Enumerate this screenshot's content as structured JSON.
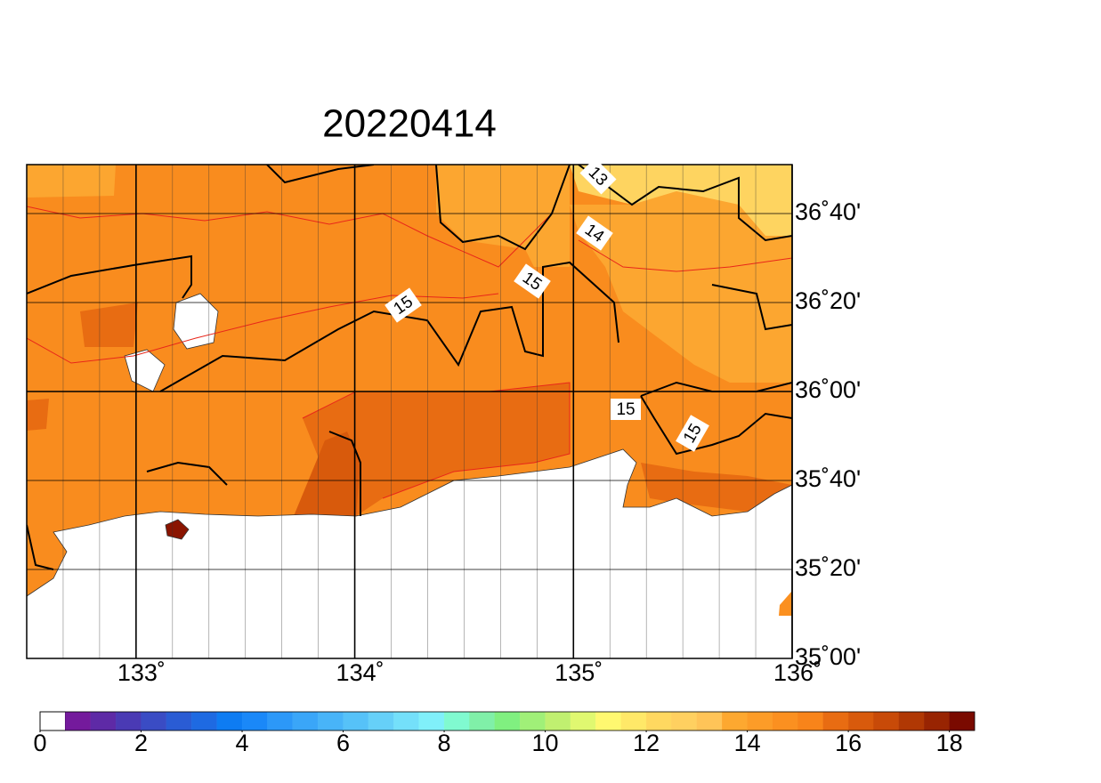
{
  "map": {
    "title": "20220414",
    "lon_lim": [
      132.5,
      136
    ],
    "lat_lim": [
      35,
      36.85
    ],
    "lon_ticks": [
      {
        "value": 133,
        "label": "133˚"
      },
      {
        "value": 134,
        "label": "134˚"
      },
      {
        "value": 135,
        "label": "135˚"
      },
      {
        "value": 136,
        "label": "136˚"
      }
    ],
    "lat_ticks": [
      {
        "value": 35,
        "label": "35˚00'"
      },
      {
        "value": 35.3333,
        "label": "35˚20'"
      },
      {
        "value": 35.6667,
        "label": "35˚40'"
      },
      {
        "value": 36,
        "label": "36˚00'"
      },
      {
        "value": 36.3333,
        "label": "36˚20'"
      },
      {
        "value": 36.6667,
        "label": "36˚40'"
      }
    ],
    "contour_labels": [
      "13",
      "14",
      "15",
      "15",
      "15",
      "15"
    ],
    "colorbar": {
      "lim": [
        0,
        18.5
      ],
      "ticks": [
        0,
        2,
        4,
        6,
        8,
        10,
        12,
        14,
        16,
        18
      ],
      "colors": [
        "#ffffff",
        "#741a9c",
        "#5e2aa6",
        "#4a3ab4",
        "#3a4cc4",
        "#2a5cd4",
        "#1e6ae2",
        "#0e7cf2",
        "#1a88f8",
        "#2c98f8",
        "#3aa6f8",
        "#48b4f8",
        "#56c2f8",
        "#66d0f8",
        "#74e0fa",
        "#80f0fa",
        "#80fad0",
        "#80f0a8",
        "#80f080",
        "#a0f078",
        "#c0f070",
        "#e0f870",
        "#fff870",
        "#ffe868",
        "#ffd860",
        "#ffd060",
        "#ffc458",
        "#fda830",
        "#fc9c28",
        "#fb9020",
        "#f8841a",
        "#e86c12",
        "#d85a0c",
        "#c84a08",
        "#b03804",
        "#982402",
        "#7a0a00"
      ]
    }
  }
}
